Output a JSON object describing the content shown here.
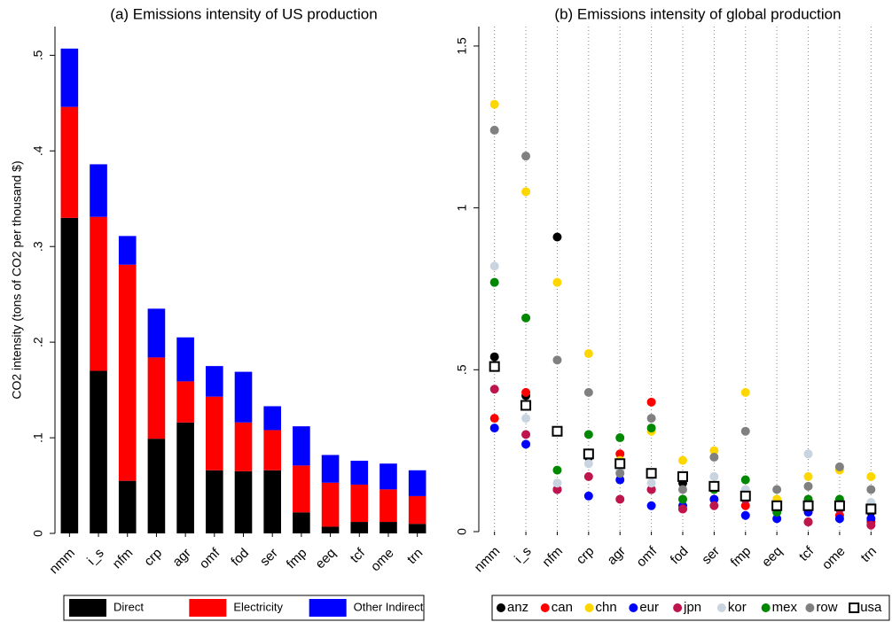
{
  "chart_data": [
    {
      "type": "bar",
      "stacked": true,
      "title": "(a) Emissions intensity of US production",
      "y_label": "CO2 intensity (tons of CO2 per thousand $)",
      "categories": [
        "nmm",
        "i_s",
        "nfm",
        "crp",
        "agr",
        "omf",
        "fod",
        "ser",
        "fmp",
        "eeq",
        "tcf",
        "ome",
        "trn"
      ],
      "series": [
        {
          "name": "Direct",
          "color": "#000000",
          "values": [
            0.33,
            0.17,
            0.055,
            0.099,
            0.116,
            0.066,
            0.065,
            0.066,
            0.022,
            0.007,
            0.012,
            0.012,
            0.01
          ]
        },
        {
          "name": "Electricity",
          "color": "#ff0000",
          "values": [
            0.116,
            0.161,
            0.226,
            0.085,
            0.043,
            0.077,
            0.051,
            0.042,
            0.049,
            0.046,
            0.039,
            0.034,
            0.029
          ]
        },
        {
          "name": "Other Indirect",
          "color": "#0000ff",
          "values": [
            0.061,
            0.055,
            0.03,
            0.051,
            0.046,
            0.032,
            0.053,
            0.025,
            0.041,
            0.029,
            0.025,
            0.027,
            0.027
          ]
        }
      ],
      "ylim": [
        0,
        0.53
      ],
      "yticks": [
        0,
        {
          "value": 0.1,
          "label": ".1"
        },
        {
          "value": 0.2,
          "label": ".2"
        },
        {
          "value": 0.3,
          "label": ".3"
        },
        {
          "value": 0.4,
          "label": ".4"
        },
        {
          "value": 0.5,
          "label": ".5"
        }
      ]
    },
    {
      "type": "scatter",
      "title": "(b) Emissions intensity of global production",
      "categories": [
        "nmm",
        "i_s",
        "nfm",
        "crp",
        "agr",
        "omf",
        "fod",
        "ser",
        "fmp",
        "eeq",
        "tcf",
        "ome",
        "trn"
      ],
      "grid": true,
      "series": [
        {
          "name": "anz",
          "color": "#000000",
          "values": [
            0.54,
            0.42,
            0.91,
            0.23,
            0.2,
            0.13,
            0.15,
            0.14,
            0.1,
            0.08,
            0.09,
            0.07,
            0.06
          ]
        },
        {
          "name": "can",
          "color": "#ff0000",
          "values": [
            0.35,
            0.43,
            0.13,
            0.24,
            0.24,
            0.4,
            0.07,
            0.14,
            0.08,
            0.07,
            0.03,
            0.05,
            0.03
          ]
        },
        {
          "name": "chn",
          "color": "#ffd700",
          "values": [
            1.32,
            1.05,
            0.77,
            0.55,
            0.22,
            0.31,
            0.22,
            0.25,
            0.43,
            0.1,
            0.17,
            0.19,
            0.17
          ]
        },
        {
          "name": "eur",
          "color": "#0000ff",
          "values": [
            0.32,
            0.27,
            0.13,
            0.11,
            0.16,
            0.08,
            0.08,
            0.1,
            0.05,
            0.04,
            0.06,
            0.04,
            0.04
          ]
        },
        {
          "name": "jpn",
          "color": "#c0144c",
          "values": [
            0.44,
            0.3,
            0.13,
            0.17,
            0.1,
            0.13,
            0.07,
            0.08,
            0.1,
            0.07,
            0.03,
            0.07,
            0.02
          ]
        },
        {
          "name": "kor",
          "color": "#c8d4e0",
          "values": [
            0.82,
            0.35,
            0.15,
            0.21,
            0.19,
            0.15,
            0.1,
            0.17,
            0.13,
            0.08,
            0.24,
            0.08,
            0.09
          ]
        },
        {
          "name": "mex",
          "color": "#008800",
          "values": [
            0.77,
            0.66,
            0.19,
            0.3,
            0.29,
            0.32,
            0.1,
            0.13,
            0.16,
            0.06,
            0.1,
            0.1,
            0.07
          ]
        },
        {
          "name": "row",
          "color": "#808080",
          "values": [
            1.24,
            1.16,
            0.53,
            0.43,
            0.18,
            0.35,
            0.13,
            0.23,
            0.31,
            0.13,
            0.14,
            0.2,
            0.13
          ]
        },
        {
          "name": "usa",
          "color": "#000000",
          "marker": "open-square",
          "values": [
            0.51,
            0.39,
            0.31,
            0.24,
            0.21,
            0.18,
            0.17,
            0.14,
            0.11,
            0.08,
            0.08,
            0.08,
            0.07
          ]
        }
      ],
      "ylim": [
        0,
        1.56
      ],
      "yticks": [
        0,
        {
          "value": 0.5,
          "label": ".5"
        },
        1,
        1.5
      ]
    }
  ]
}
